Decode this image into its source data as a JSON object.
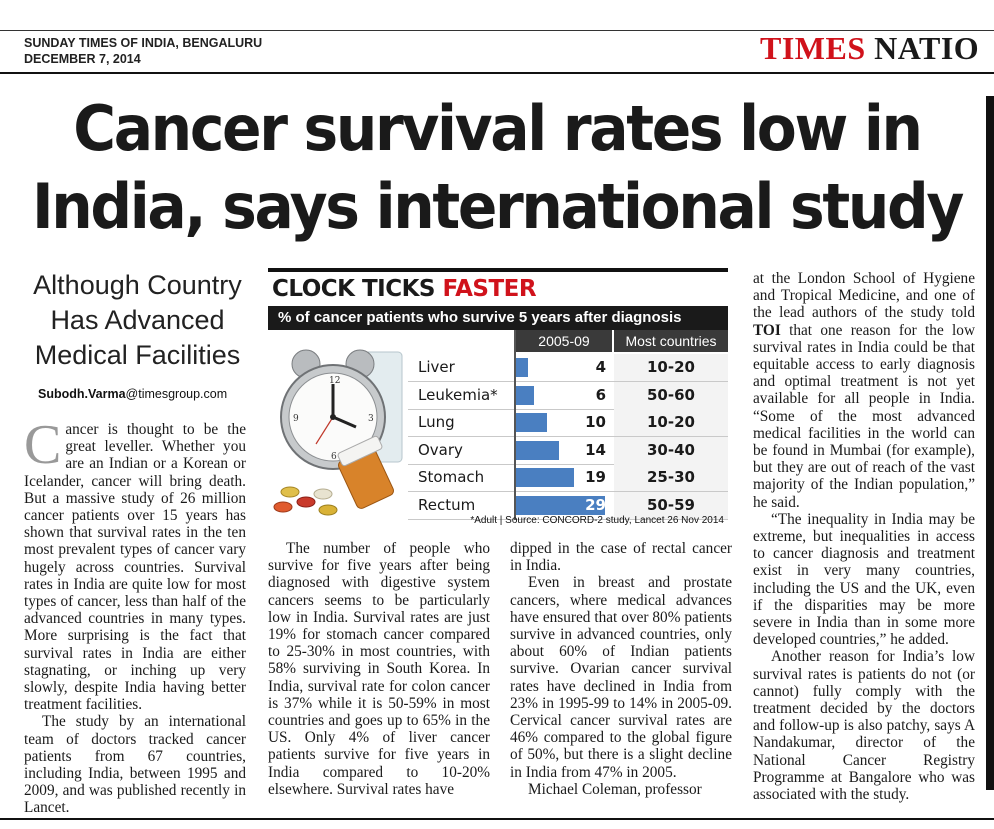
{
  "masthead": {
    "edition": "SUNDAY TIMES OF INDIA, BENGALURU",
    "date": "DECEMBER 7, 2014",
    "brand_red": "TIMES",
    "brand_black": "NATIO"
  },
  "headline": {
    "line1": "Cancer survival rates low in",
    "line2": "India, says international study"
  },
  "subhead": {
    "line1": "Although Country",
    "line2": "Has Advanced",
    "line3": "Medical Facilities"
  },
  "byline": {
    "name": "Subodh.Varma",
    "email_domain": "@timesgroup.com"
  },
  "infographic": {
    "title_part1": "CLOCK TICKS ",
    "title_part2": "FASTER",
    "subtitle": "% of cancer patients who survive 5 years after diagnosis",
    "col_period": "2005-09",
    "col_most": "Most countries",
    "source": "*Adult | Source: CONCORD-2 study, Lancet 26 Nov 2014",
    "colors": {
      "bar": "#4a7fc1",
      "title_red": "#d0121b"
    }
  },
  "chart_data": {
    "type": "bar",
    "title": "CLOCK TICKS FASTER",
    "subtitle": "% of cancer patients who survive 5 years after diagnosis",
    "categories": [
      "Liver",
      "Leukemia*",
      "Lung",
      "Ovary",
      "Stomach",
      "Rectum"
    ],
    "series": [
      {
        "name": "2005-09",
        "values": [
          4,
          6,
          10,
          14,
          19,
          29
        ]
      }
    ],
    "most_countries": [
      "10-20",
      "50-60",
      "10-20",
      "30-40",
      "25-30",
      "50-59"
    ],
    "xlim": [
      0,
      30
    ]
  },
  "body": {
    "col1": {
      "dropcap": "C",
      "p1": "ancer is thought to be the great leveller. Whether you are an Indian or a Korean or Icelander, cancer will bring death. But a massive study of 26 million cancer patients over 15 years has shown that survival rates in the ten most prevalent types of cancer vary hugely across countries. Survival rates in India are quite low for most types of cancer, less than half of the advanced countries in many types. More surprising is the fact that survival rates in India are either stagnating, or inching up very slowly, despite India having better treatment facilities.",
      "p2": "The study by an international team of doctors tracked cancer patients from 67 countries, including India, between 1995 and 2009, and was published recently in Lancet."
    },
    "col2": {
      "p1": "The number of people who survive for five years after being diagnosed with digestive system cancers seems to be particularly low in India. Survival rates are just 19% for stomach cancer compared to 25-30% in most countries, with 58% surviving in South Korea. In India, survival rate for colon cancer is 37% while it is 50-59% in most countries and goes up to 65% in the US. Only 4% of liver cancer patients survive for five years in India compared to 10-20% elsewhere. Survival rates have"
    },
    "col3": {
      "p1": "dipped in the case of rectal cancer in India.",
      "p2": "Even in breast and prostate cancers, where medical advances have ensured that over 80% patients survive in advanced countries, only about 60% of Indian patients survive. Ovarian cancer survival rates have declined in India from 23% in 1995-99 to 14% in 2005-09. Cervical cancer survival rates are 46% compared to the global figure of 50%, but there is a slight decline in India from 47% in 2005.",
      "p3": "Michael Coleman, professor"
    },
    "col4": {
      "p1_a": "at the London School of Hygiene and Tropical Medicine, and one of the lead authors of the study told ",
      "p1_b": "TOI",
      "p1_c": " that one reason for the low survival rates in India could be that equitable access to early diagnosis and optimal treatment is not yet available for all people in India. “Some of the most advanced medical facilities in the world can be found in Mumbai (for example), but they are out of reach of the vast majority of the Indian population,” he said.",
      "p2": "“The inequality in India may be extreme, but inequalities in access to cancer diagnosis and treatment exist in very many countries, including the US and the UK, even if the disparities may be more severe in India than in some more developed countries,” he added.",
      "p3": "Another reason for India’s low survival rates is patients do not (or cannot) fully comply with the treatment decided by the doctors and follow-up is also patchy, says A Nandakumar, director of the National Cancer Registry Programme at Bangalore who was associated with the study."
    }
  }
}
